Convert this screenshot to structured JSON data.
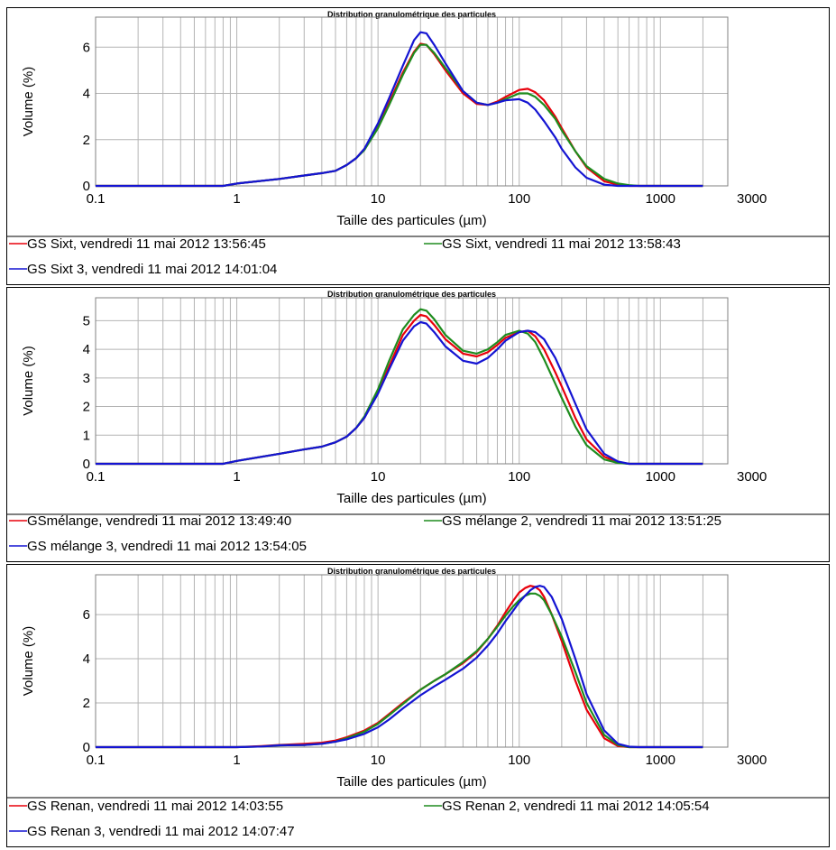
{
  "chart_data": [
    {
      "type": "line",
      "title": "Distribution granulométrique des particules",
      "xlabel": "Taille des particules (µm)",
      "ylabel": "Volume (%)",
      "x_scale": "log",
      "xlim": [
        0.1,
        3000
      ],
      "ylim": [
        0,
        7.3
      ],
      "x_ticks": [
        "0.1",
        "1",
        "10",
        "100",
        "1000",
        "3000"
      ],
      "y_ticks": [
        "0",
        "2",
        "4",
        "6"
      ],
      "grid": true,
      "legend_position": "bottom",
      "series": [
        {
          "name": "GS Sixt, vendredi 11 mai 2012 13:56:45",
          "color": "#e8000b",
          "x": [
            0.1,
            0.5,
            0.8,
            1,
            2,
            3,
            4,
            5,
            6,
            7,
            8,
            10,
            12,
            15,
            18,
            20,
            22,
            25,
            30,
            40,
            50,
            60,
            70,
            80,
            100,
            115,
            130,
            150,
            180,
            200,
            250,
            300,
            400,
            500,
            600,
            700,
            800,
            1000,
            2000
          ],
          "y": [
            0,
            0,
            0,
            0.1,
            0.3,
            0.45,
            0.55,
            0.65,
            0.9,
            1.2,
            1.6,
            2.6,
            3.6,
            4.9,
            5.8,
            6.15,
            6.1,
            5.7,
            5.0,
            4.0,
            3.55,
            3.5,
            3.65,
            3.85,
            4.15,
            4.2,
            4.05,
            3.7,
            3.0,
            2.5,
            1.5,
            0.8,
            0.2,
            0.05,
            0,
            0,
            0,
            0,
            0
          ]
        },
        {
          "name": "GS Sixt, vendredi 11 mai 2012 13:58:43",
          "color": "#1e8c1e",
          "x": [
            0.1,
            0.5,
            0.8,
            1,
            2,
            3,
            4,
            5,
            6,
            7,
            8,
            10,
            12,
            15,
            18,
            20,
            22,
            25,
            30,
            40,
            50,
            60,
            70,
            80,
            100,
            115,
            130,
            150,
            180,
            200,
            250,
            300,
            400,
            500,
            600,
            700,
            800,
            1000,
            2000
          ],
          "y": [
            0,
            0,
            0,
            0.1,
            0.3,
            0.45,
            0.55,
            0.65,
            0.9,
            1.2,
            1.55,
            2.5,
            3.5,
            4.8,
            5.75,
            6.1,
            6.1,
            5.75,
            5.1,
            4.1,
            3.6,
            3.5,
            3.6,
            3.75,
            4.0,
            4.0,
            3.85,
            3.5,
            2.9,
            2.4,
            1.5,
            0.85,
            0.3,
            0.1,
            0.03,
            0,
            0,
            0,
            0
          ]
        },
        {
          "name": "GS Sixt 3, vendredi 11 mai 2012 14:01:04",
          "color": "#1414d2",
          "x": [
            0.1,
            0.5,
            0.8,
            1,
            2,
            3,
            4,
            5,
            6,
            7,
            8,
            10,
            12,
            15,
            18,
            20,
            22,
            25,
            30,
            40,
            50,
            60,
            70,
            80,
            100,
            115,
            130,
            150,
            180,
            200,
            250,
            300,
            400,
            500,
            600,
            700,
            800,
            1000,
            2000
          ],
          "y": [
            0,
            0,
            0,
            0.1,
            0.3,
            0.45,
            0.55,
            0.65,
            0.9,
            1.2,
            1.6,
            2.7,
            3.8,
            5.2,
            6.3,
            6.65,
            6.6,
            6.1,
            5.3,
            4.1,
            3.6,
            3.5,
            3.6,
            3.7,
            3.75,
            3.6,
            3.3,
            2.8,
            2.1,
            1.6,
            0.8,
            0.35,
            0.05,
            0,
            0,
            0,
            0,
            0,
            0
          ]
        }
      ]
    },
    {
      "type": "line",
      "title": "Distribution granulométrique des particules",
      "xlabel": "Taille des particules (µm)",
      "ylabel": "Volume (%)",
      "x_scale": "log",
      "xlim": [
        0.1,
        3000
      ],
      "ylim": [
        0,
        5.8
      ],
      "x_ticks": [
        "0.1",
        "1",
        "10",
        "100",
        "1000",
        "3000"
      ],
      "y_ticks": [
        "0",
        "1",
        "2",
        "3",
        "4",
        "5"
      ],
      "grid": true,
      "legend_position": "bottom",
      "series": [
        {
          "name": "GSmélange, vendredi 11 mai 2012 13:49:40",
          "color": "#e8000b",
          "x": [
            0.1,
            0.5,
            0.8,
            1,
            2,
            3,
            4,
            5,
            6,
            7,
            8,
            10,
            12,
            15,
            18,
            20,
            22,
            25,
            30,
            40,
            50,
            60,
            70,
            80,
            100,
            115,
            130,
            150,
            180,
            200,
            250,
            300,
            400,
            500,
            600,
            700,
            800,
            1000,
            2000
          ],
          "y": [
            0,
            0,
            0,
            0.1,
            0.35,
            0.5,
            0.6,
            0.75,
            0.95,
            1.25,
            1.6,
            2.5,
            3.4,
            4.5,
            5.0,
            5.2,
            5.15,
            4.85,
            4.35,
            3.85,
            3.75,
            3.9,
            4.15,
            4.4,
            4.6,
            4.65,
            4.45,
            4.0,
            3.2,
            2.7,
            1.6,
            0.85,
            0.25,
            0.05,
            0,
            0,
            0,
            0,
            0
          ]
        },
        {
          "name": "GS mélange 2, vendredi 11 mai 2012 13:51:25",
          "color": "#1e8c1e",
          "x": [
            0.1,
            0.5,
            0.8,
            1,
            2,
            3,
            4,
            5,
            6,
            7,
            8,
            10,
            12,
            15,
            18,
            20,
            22,
            25,
            30,
            40,
            50,
            60,
            70,
            80,
            100,
            115,
            130,
            150,
            180,
            200,
            250,
            300,
            400,
            500,
            600,
            700,
            800,
            1000,
            2000
          ],
          "y": [
            0,
            0,
            0,
            0.1,
            0.35,
            0.5,
            0.6,
            0.75,
            0.95,
            1.25,
            1.65,
            2.6,
            3.6,
            4.7,
            5.2,
            5.4,
            5.35,
            5.05,
            4.5,
            3.95,
            3.85,
            4.0,
            4.25,
            4.5,
            4.65,
            4.55,
            4.25,
            3.65,
            2.8,
            2.3,
            1.3,
            0.65,
            0.15,
            0.03,
            0,
            0,
            0,
            0,
            0
          ]
        },
        {
          "name": "GS mélange 3, vendredi 11 mai 2012 13:54:05",
          "color": "#1414d2",
          "x": [
            0.1,
            0.5,
            0.8,
            1,
            2,
            3,
            4,
            5,
            6,
            7,
            8,
            10,
            12,
            15,
            18,
            20,
            22,
            25,
            30,
            40,
            50,
            60,
            70,
            80,
            100,
            115,
            130,
            150,
            180,
            200,
            250,
            300,
            400,
            500,
            600,
            700,
            800,
            1000,
            2000
          ],
          "y": [
            0,
            0,
            0,
            0.1,
            0.35,
            0.5,
            0.6,
            0.75,
            0.95,
            1.25,
            1.6,
            2.45,
            3.3,
            4.3,
            4.8,
            4.95,
            4.9,
            4.6,
            4.1,
            3.6,
            3.5,
            3.7,
            4.0,
            4.3,
            4.6,
            4.65,
            4.6,
            4.35,
            3.7,
            3.2,
            2.1,
            1.2,
            0.35,
            0.08,
            0,
            0,
            0,
            0,
            0
          ]
        }
      ]
    },
    {
      "type": "line",
      "title": "Distribution granulométrique des particules",
      "xlabel": "Taille des particules (µm)",
      "ylabel": "Volume (%)",
      "x_scale": "log",
      "xlim": [
        0.1,
        3000
      ],
      "ylim": [
        0,
        7.8
      ],
      "x_ticks": [
        "0.1",
        "1",
        "10",
        "100",
        "1000",
        "3000"
      ],
      "y_ticks": [
        "0",
        "2",
        "4",
        "6"
      ],
      "grid": true,
      "legend_position": "bottom",
      "series": [
        {
          "name": "GS Renan, vendredi 11 mai 2012 14:03:55",
          "color": "#e8000b",
          "x": [
            0.1,
            1,
            1.5,
            2,
            3,
            4,
            5,
            6,
            8,
            10,
            12,
            15,
            20,
            25,
            30,
            40,
            50,
            60,
            70,
            80,
            90,
            100,
            110,
            120,
            130,
            140,
            150,
            170,
            200,
            250,
            300,
            400,
            500,
            600,
            700,
            800,
            1000,
            2000
          ],
          "y": [
            0,
            0,
            0.05,
            0.1,
            0.15,
            0.2,
            0.3,
            0.45,
            0.75,
            1.1,
            1.5,
            2.0,
            2.6,
            3.0,
            3.3,
            3.8,
            4.3,
            4.9,
            5.5,
            6.1,
            6.6,
            7.0,
            7.2,
            7.3,
            7.25,
            7.1,
            6.8,
            6.0,
            4.8,
            3.0,
            1.7,
            0.4,
            0.05,
            0,
            0,
            0,
            0,
            0
          ]
        },
        {
          "name": "GS Renan 2, vendredi 11 mai 2012 14:05:54",
          "color": "#1e8c1e",
          "x": [
            0.1,
            1,
            1.5,
            2,
            3,
            4,
            5,
            6,
            8,
            10,
            12,
            15,
            20,
            25,
            30,
            40,
            50,
            60,
            70,
            80,
            90,
            100,
            110,
            120,
            130,
            140,
            150,
            170,
            200,
            250,
            300,
            400,
            500,
            600,
            700,
            800,
            1000,
            2000
          ],
          "y": [
            0,
            0,
            0.03,
            0.08,
            0.1,
            0.15,
            0.25,
            0.4,
            0.7,
            1.05,
            1.45,
            1.95,
            2.6,
            3.0,
            3.3,
            3.85,
            4.35,
            4.9,
            5.45,
            5.95,
            6.35,
            6.65,
            6.85,
            6.95,
            6.95,
            6.85,
            6.65,
            6.0,
            5.0,
            3.4,
            2.0,
            0.55,
            0.1,
            0,
            0,
            0,
            0,
            0
          ]
        },
        {
          "name": "GS Renan 3, vendredi 11 mai 2012 14:07:47",
          "color": "#1414d2",
          "x": [
            0.1,
            1,
            1.5,
            2,
            3,
            4,
            5,
            6,
            8,
            10,
            12,
            15,
            20,
            25,
            30,
            40,
            50,
            60,
            70,
            80,
            90,
            100,
            110,
            120,
            130,
            140,
            150,
            170,
            200,
            250,
            300,
            400,
            500,
            600,
            700,
            800,
            1000,
            2000
          ],
          "y": [
            0,
            0,
            0.03,
            0.08,
            0.1,
            0.15,
            0.25,
            0.35,
            0.6,
            0.9,
            1.25,
            1.75,
            2.35,
            2.75,
            3.05,
            3.55,
            4.05,
            4.6,
            5.15,
            5.7,
            6.15,
            6.55,
            6.85,
            7.1,
            7.25,
            7.3,
            7.25,
            6.8,
            5.8,
            4.0,
            2.4,
            0.75,
            0.15,
            0.02,
            0,
            0,
            0,
            0
          ]
        }
      ]
    }
  ]
}
